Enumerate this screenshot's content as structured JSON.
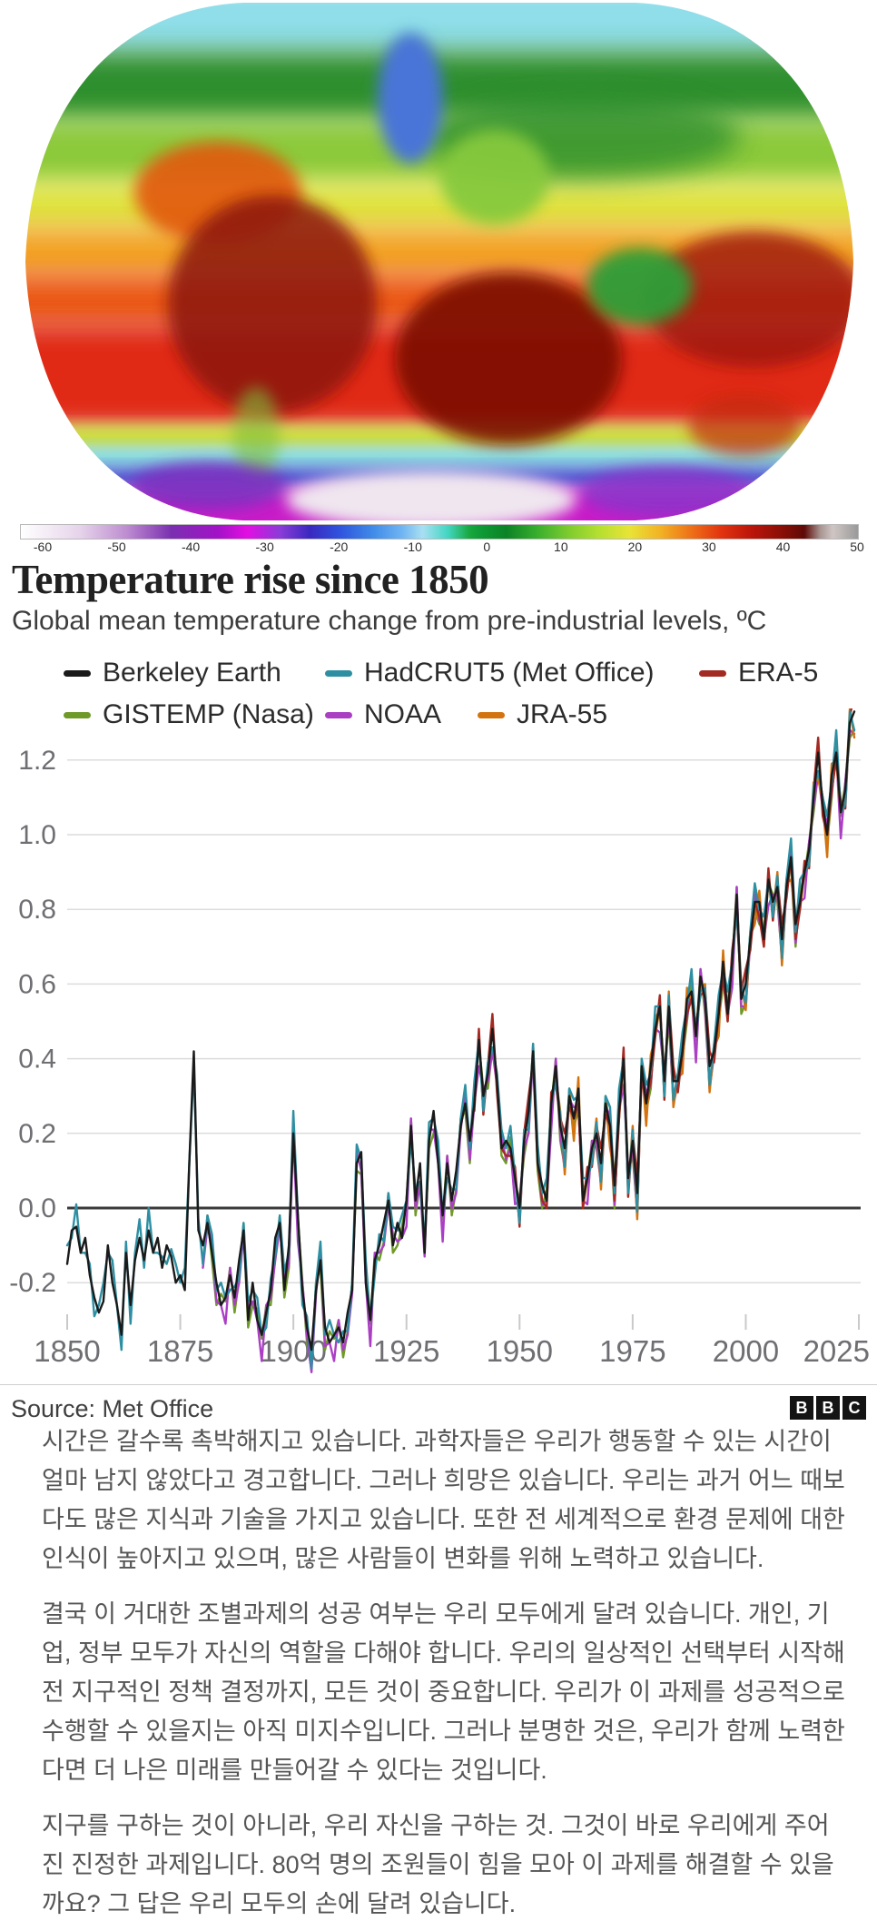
{
  "map": {
    "description": "World map of surface temperature, warm reds over continents and oceans, cyan-blue Arctic, purple and white Antarctic band",
    "colorbar_ticks": [
      "-60",
      "-50",
      "-40",
      "-30",
      "-20",
      "-10",
      "0",
      "10",
      "20",
      "30",
      "40",
      "50"
    ]
  },
  "chart_data": {
    "type": "line",
    "title": "Temperature rise since 1850",
    "subtitle": "Global mean temperature change from pre-industrial levels, ºC",
    "xlabel": "",
    "ylabel": "",
    "x_ticks": [
      1850,
      1875,
      1900,
      1925,
      1950,
      1975,
      2000,
      2025
    ],
    "y_ticks": [
      -0.2,
      0.0,
      0.2,
      0.4,
      0.6,
      0.8,
      1.0,
      1.2
    ],
    "xlim": [
      1850,
      2025
    ],
    "ylim": [
      -0.42,
      1.34
    ],
    "grid": true,
    "zero_line": true,
    "legend_position": "top",
    "years_start": 1850,
    "years_end": 2024,
    "base_values": [
      -0.15,
      -0.06,
      -0.05,
      -0.12,
      -0.08,
      -0.18,
      -0.24,
      -0.28,
      -0.25,
      -0.1,
      -0.2,
      -0.26,
      -0.34,
      -0.12,
      -0.26,
      -0.14,
      -0.08,
      -0.14,
      -0.06,
      -0.12,
      -0.08,
      -0.16,
      -0.1,
      -0.13,
      -0.2,
      -0.18,
      -0.22,
      0.12,
      0.42,
      -0.06,
      -0.1,
      -0.04,
      -0.12,
      -0.2,
      -0.26,
      -0.24,
      -0.18,
      -0.24,
      -0.14,
      -0.06,
      -0.3,
      -0.2,
      -0.3,
      -0.34,
      -0.28,
      -0.22,
      -0.08,
      -0.04,
      -0.22,
      -0.1,
      0.2,
      -0.02,
      -0.22,
      -0.32,
      -0.38,
      -0.22,
      -0.14,
      -0.32,
      -0.36,
      -0.34,
      -0.32,
      -0.36,
      -0.28,
      -0.22,
      0.12,
      0.15,
      -0.2,
      -0.3,
      -0.14,
      -0.1,
      -0.04,
      0.02,
      -0.1,
      -0.04,
      -0.08,
      0.02,
      0.22,
      0.02,
      0.12,
      -0.12,
      0.18,
      0.26,
      0.12,
      -0.02,
      0.12,
      0.02,
      0.1,
      0.22,
      0.28,
      0.18,
      0.28,
      0.45,
      0.3,
      0.36,
      0.48,
      0.34,
      0.16,
      0.18,
      0.16,
      0.08,
      0.0,
      0.18,
      0.26,
      0.42,
      0.12,
      0.06,
      0.02,
      0.28,
      0.38,
      0.22,
      0.16,
      0.3,
      0.24,
      0.32,
      0.02,
      0.08,
      0.16,
      0.2,
      0.12,
      0.28,
      0.22,
      0.06,
      0.26,
      0.4,
      0.08,
      0.18,
      0.04,
      0.38,
      0.28,
      0.38,
      0.48,
      0.54,
      0.34,
      0.54,
      0.34,
      0.34,
      0.42,
      0.56,
      0.58,
      0.46,
      0.62,
      0.56,
      0.38,
      0.42,
      0.52,
      0.66,
      0.52,
      0.66,
      0.84,
      0.56,
      0.6,
      0.72,
      0.82,
      0.82,
      0.72,
      0.88,
      0.82,
      0.86,
      0.72,
      0.86,
      0.94,
      0.76,
      0.82,
      0.9,
      0.96,
      1.1,
      1.22,
      1.08,
      1.0,
      1.16,
      1.22,
      1.06,
      1.12,
      1.3,
      1.33
    ],
    "series": [
      {
        "name": "Berkeley Earth",
        "color": "#1a1a1a",
        "start_year": 1850,
        "legend_row": 0,
        "jitter": [
          0
        ]
      },
      {
        "name": "HadCRUT5 (Met Office)",
        "color": "#2e8fa3",
        "start_year": 1850,
        "legend_row": 0,
        "jitter": [
          0.05,
          -0.02,
          0.06,
          0.0,
          -0.04,
          0.03,
          -0.05,
          0.02
        ]
      },
      {
        "name": "ERA-5",
        "color": "#a32a22",
        "start_year": 1940,
        "legend_row": 0,
        "jitter": [
          -0.02,
          0.03,
          -0.05,
          0.02,
          0.04,
          -0.03,
          0.0,
          -0.04
        ]
      },
      {
        "name": "GISTEMP (Nasa)",
        "color": "#6f9a28",
        "start_year": 1880,
        "legend_row": 1,
        "jitter": [
          -0.05,
          0.02,
          -0.02,
          -0.06,
          0.03,
          -0.01,
          0.02,
          -0.04
        ]
      },
      {
        "name": "NOAA",
        "color": "#ab3fc4",
        "start_year": 1880,
        "legend_row": 1,
        "jitter": [
          -0.06,
          -0.01,
          0.03,
          -0.05,
          0.0,
          -0.07,
          0.02,
          -0.02
        ]
      },
      {
        "name": "JRA-55",
        "color": "#d2730f",
        "start_year": 1958,
        "legend_row": 1,
        "jitter": [
          -0.03,
          0.04,
          -0.07,
          0.01,
          -0.06,
          0.03,
          -0.02,
          0.0
        ]
      }
    ]
  },
  "source": {
    "label": "Source: Met Office"
  },
  "bbc_logo_letters": [
    "B",
    "B",
    "C"
  ],
  "article": {
    "paragraphs": [
      "시간은 갈수록 촉박해지고 있습니다. 과학자들은 우리가 행동할 수 있는 시간이 얼마 남지 않았다고 경고합니다. 그러나 희망은 있습니다. 우리는 과거 어느 때보다도 많은 지식과 기술을 가지고 있습니다. 또한 전 세계적으로 환경 문제에 대한 인식이 높아지고 있으며, 많은 사람들이 변화를 위해 노력하고 있습니다.",
      "결국 이 거대한 조별과제의 성공 여부는 우리 모두에게 달려 있습니다. 개인, 기업, 정부 모두가 자신의 역할을 다해야 합니다. 우리의 일상적인 선택부터 시작해 전 지구적인 정책 결정까지, 모든 것이 중요합니다. 우리가 이 과제를 성공적으로 수행할 수 있을지는 아직 미지수입니다. 그러나 분명한 것은, 우리가 함께 노력한다면 더 나은 미래를 만들어갈 수 있다는 것입니다.",
      "지구를 구하는 것이 아니라, 우리 자신을 구하는 것. 그것이 바로 우리에게 주어진 진정한 과제입니다. 80억 명의 조원들이 힘을 모아 이 과제를 해결할 수 있을까요? 그 답은 우리 모두의 손에 달려 있습니다."
    ]
  }
}
